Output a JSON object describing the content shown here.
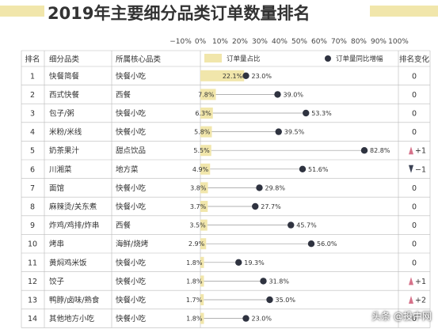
{
  "title": "2019年主要细分品类订单数量排名",
  "watermark": "头条 @投中网",
  "colors": {
    "bar": "#f1e6ab",
    "dot": "#2f3340",
    "up": "#d6728a",
    "down": "#3c4255",
    "grid": "#bbbbbb",
    "title_bar": "#f1e6ab"
  },
  "table_headers": {
    "rank": "排名",
    "category": "细分品类",
    "core": "所属核心品类",
    "change": "排名变化"
  },
  "legend": {
    "bar_label": "订单量占比",
    "dot_label": "订单量同比增幅"
  },
  "chart_data": {
    "type": "bar",
    "title": "2019年主要细分品类订单数量排名",
    "x_ticks": [
      "−10%",
      "0%",
      "10%",
      "20%",
      "30%",
      "40%",
      "50%",
      "60%",
      "70%",
      "80%",
      "90%",
      "100%"
    ],
    "xlim": [
      -10,
      100
    ],
    "series": [
      {
        "name": "订单量占比",
        "kind": "bar",
        "values": [
          22.1,
          7.8,
          6.3,
          5.8,
          5.5,
          4.9,
          3.8,
          3.7,
          3.5,
          2.9,
          1.8,
          1.8,
          1.7,
          1.8
        ],
        "labels": [
          "22.1%",
          "7.8%",
          "6.3%",
          "5.8%",
          "5.5%",
          "4.9%",
          "3.8%",
          "3.7%",
          "3.5%",
          "2.9%",
          "1.8%",
          "1.8%",
          "1.7%",
          "1.8%"
        ]
      },
      {
        "name": "订单量同比增幅",
        "kind": "dot",
        "values": [
          23.0,
          39.0,
          53.3,
          39.5,
          82.8,
          51.6,
          29.8,
          27.7,
          45.7,
          56.0,
          19.3,
          31.8,
          35.0,
          23.0
        ],
        "labels": [
          "23.0%",
          "39.0%",
          "53.3%",
          "39.5%",
          "82.8%",
          "51.6%",
          "29.8%",
          "27.7%",
          "45.7%",
          "56.0%",
          "19.3%",
          "31.8%",
          "35.0%",
          "23.0%"
        ]
      }
    ],
    "rows": [
      {
        "rank": "1",
        "category": "快餐简餐",
        "core": "快餐小吃",
        "change": "0",
        "dir": "none"
      },
      {
        "rank": "2",
        "category": "西式快餐",
        "core": "西餐",
        "change": "0",
        "dir": "none"
      },
      {
        "rank": "3",
        "category": "包子/粥",
        "core": "快餐小吃",
        "change": "0",
        "dir": "none"
      },
      {
        "rank": "4",
        "category": "米粉/米线",
        "core": "快餐小吃",
        "change": "0",
        "dir": "none"
      },
      {
        "rank": "5",
        "category": "奶茶果汁",
        "core": "甜点饮品",
        "change": "+1",
        "dir": "up"
      },
      {
        "rank": "6",
        "category": "川湘菜",
        "core": "地方菜",
        "change": "−1",
        "dir": "down"
      },
      {
        "rank": "7",
        "category": "面馆",
        "core": "快餐小吃",
        "change": "0",
        "dir": "none"
      },
      {
        "rank": "8",
        "category": "麻辣烫/关东煮",
        "core": "快餐小吃",
        "change": "0",
        "dir": "none"
      },
      {
        "rank": "9",
        "category": "炸鸡/鸡排/炸串",
        "core": "西餐",
        "change": "0",
        "dir": "none"
      },
      {
        "rank": "10",
        "category": "烤串",
        "core": "海鲜/烧烤",
        "change": "0",
        "dir": "none"
      },
      {
        "rank": "11",
        "category": "黄焖鸡米饭",
        "core": "快餐小吃",
        "change": "0",
        "dir": "none"
      },
      {
        "rank": "12",
        "category": "饺子",
        "core": "快餐小吃",
        "change": "+1",
        "dir": "up"
      },
      {
        "rank": "13",
        "category": "鸭脖/卤味/熟食",
        "core": "快餐小吃",
        "change": "+2",
        "dir": "up"
      },
      {
        "rank": "14",
        "category": "其他地方小吃",
        "core": "快餐小吃",
        "change": "0",
        "dir": "none"
      }
    ]
  }
}
